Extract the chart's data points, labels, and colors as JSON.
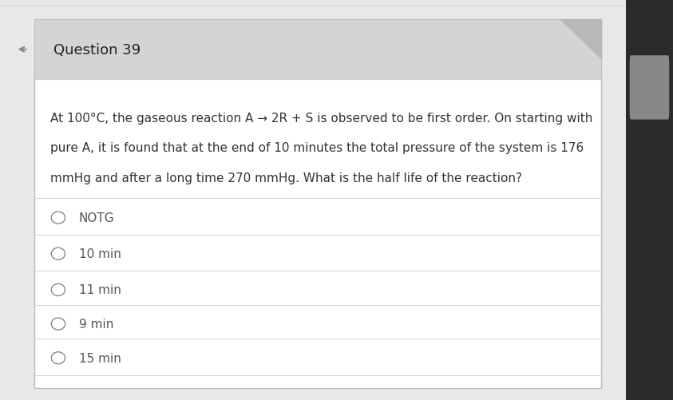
{
  "title": "Question 39",
  "question_text_line1": "At 100°C, the gaseous reaction A → 2R + S is observed to be first order. On starting with",
  "question_text_line2": "pure A, it is found that at the end of 10 minutes the total pressure of the system is 176",
  "question_text_line3": "mmHg and after a long time 270 mmHg. What is the half life of the reaction?",
  "options": [
    "NOTG",
    "10 min",
    "11 min",
    "9 min",
    "15 min"
  ],
  "bg_outer": "#e8e8e8",
  "bg_inner": "#ffffff",
  "text_color": "#333333",
  "title_color": "#222222",
  "option_text_color": "#555555",
  "divider_color": "#cccccc",
  "header_font_size": 13,
  "question_font_size": 11,
  "option_font_size": 11,
  "right_panel_color": "#2a2a2a",
  "scroll_bar_color": "#888888"
}
